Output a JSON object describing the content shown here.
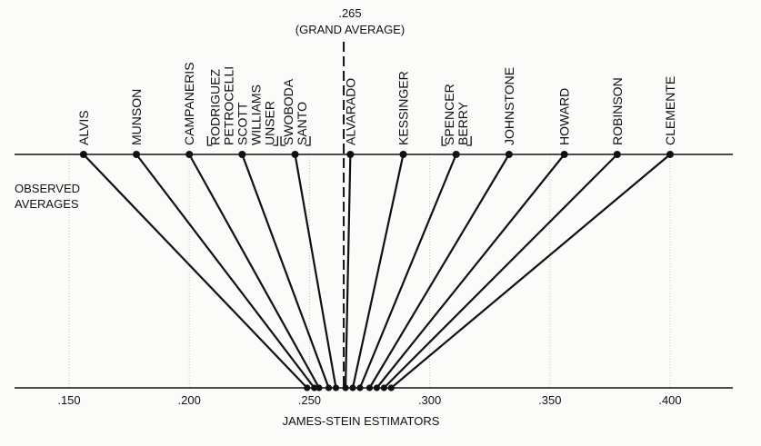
{
  "grand_average": {
    "value_label": ".265",
    "caption": "(GRAND AVERAGE)",
    "value": 0.265
  },
  "top_axis_label": [
    "OBSERVED",
    "AVERAGES"
  ],
  "bottom_axis_label": "JAMES-STEIN ESTIMATORS",
  "ticks": [
    {
      "label": ".150",
      "value": 0.15
    },
    {
      "label": ".200",
      "value": 0.2
    },
    {
      "label": ".250",
      "value": 0.25
    },
    {
      "label": ".300",
      "value": 0.3
    },
    {
      "label": ".350",
      "value": 0.35
    },
    {
      "label": ".400",
      "value": 0.4
    }
  ],
  "chart_data": {
    "type": "line",
    "xlim": [
      0.135,
      0.42
    ],
    "players": [
      {
        "name": "ALVIS",
        "observed": 0.156,
        "estimate": 0.249
      },
      {
        "name": "MUNSON",
        "observed": 0.178,
        "estimate": 0.252
      },
      {
        "name": "CAMPANERIS",
        "observed": 0.2,
        "estimate": 0.254
      },
      {
        "name": "RODRIGUEZ",
        "observed": 0.222,
        "estimate": 0.258
      },
      {
        "name": "PETROCELLI",
        "observed": 0.222,
        "estimate": 0.258
      },
      {
        "name": "SCOTT",
        "observed": 0.222,
        "estimate": 0.258
      },
      {
        "name": "WILLIAMS",
        "observed": 0.222,
        "estimate": 0.258
      },
      {
        "name": "UNSER",
        "observed": 0.222,
        "estimate": 0.258
      },
      {
        "name": "SWOBODA",
        "observed": 0.244,
        "estimate": 0.261
      },
      {
        "name": "SANTO",
        "observed": 0.244,
        "estimate": 0.261
      },
      {
        "name": "ALVARADO",
        "observed": 0.267,
        "estimate": 0.265
      },
      {
        "name": "KESSINGER",
        "observed": 0.289,
        "estimate": 0.268
      },
      {
        "name": "SPENCER",
        "observed": 0.311,
        "estimate": 0.271
      },
      {
        "name": "BERRY",
        "observed": 0.311,
        "estimate": 0.271
      },
      {
        "name": "JOHNSTONE",
        "observed": 0.333,
        "estimate": 0.275
      },
      {
        "name": "HOWARD",
        "observed": 0.356,
        "estimate": 0.278
      },
      {
        "name": "ROBINSON",
        "observed": 0.378,
        "estimate": 0.281
      },
      {
        "name": "CLEMENTE",
        "observed": 0.4,
        "estimate": 0.284
      }
    ]
  }
}
